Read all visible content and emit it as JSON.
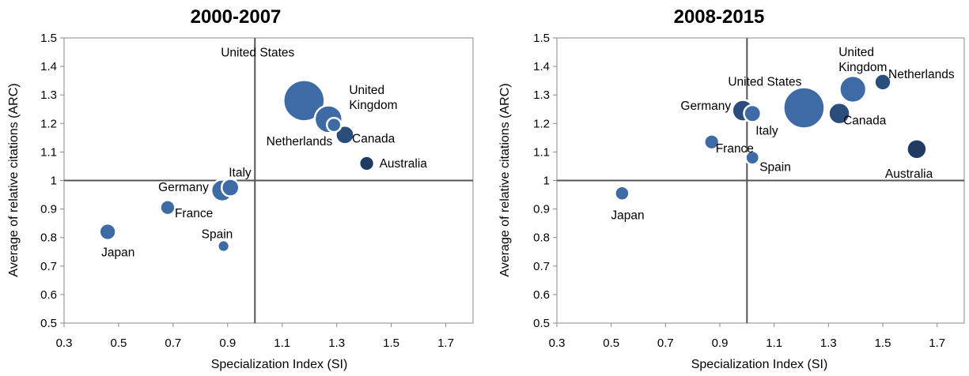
{
  "chart_data": [
    {
      "type": "scatter",
      "title": "2000-2007",
      "xlabel": "Specialization Index (SI)",
      "ylabel": "Average of relative citations (ARC)",
      "xlim": [
        0.3,
        1.8
      ],
      "ylim": [
        0.5,
        1.5
      ],
      "x_ticks": [
        "0.3",
        "0.5",
        "0.7",
        "0.9",
        "1.1",
        "1.3",
        "1.5",
        "1.7"
      ],
      "y_ticks": [
        "0.5",
        "0.6",
        "0.7",
        "0.8",
        "0.9",
        "1",
        "1.1",
        "1.2",
        "1.3",
        "1.4",
        "1.5"
      ],
      "reference_lines": {
        "x": 1.0,
        "y": 1.0
      },
      "grid": false,
      "points": [
        {
          "label": "United States",
          "x": 1.18,
          "y": 1.28,
          "size": 1.0,
          "color": "#3e6aa6"
        },
        {
          "label": "United Kingdom",
          "x": 1.27,
          "y": 1.215,
          "size": 0.45,
          "color": "#3e6aa6"
        },
        {
          "label": "Netherlands",
          "x": 1.29,
          "y": 1.195,
          "size": 0.12,
          "color": "#3e6aa6"
        },
        {
          "label": "Canada",
          "x": 1.33,
          "y": 1.16,
          "size": 0.2,
          "color": "#2b4d7c"
        },
        {
          "label": "Australia",
          "x": 1.41,
          "y": 1.06,
          "size": 0.13,
          "color": "#1f3b63"
        },
        {
          "label": "Italy",
          "x": 0.91,
          "y": 0.975,
          "size": 0.18,
          "color": "#3e6aa6"
        },
        {
          "label": "Germany",
          "x": 0.88,
          "y": 0.965,
          "size": 0.28,
          "color": "#3e6aa6"
        },
        {
          "label": "France",
          "x": 0.68,
          "y": 0.905,
          "size": 0.13,
          "color": "#3e6aa6"
        },
        {
          "label": "Japan",
          "x": 0.46,
          "y": 0.82,
          "size": 0.16,
          "color": "#3e6aa6"
        },
        {
          "label": "Spain",
          "x": 0.885,
          "y": 0.77,
          "size": 0.08,
          "color": "#3e6aa6"
        }
      ]
    },
    {
      "type": "scatter",
      "title": "2008-2015",
      "xlabel": "Specialization Index (SI)",
      "ylabel": "Average of relative citations (ARC)",
      "xlim": [
        0.3,
        1.8
      ],
      "ylim": [
        0.5,
        1.5
      ],
      "x_ticks": [
        "0.3",
        "0.5",
        "0.7",
        "0.9",
        "1.1",
        "1.3",
        "1.5",
        "1.7"
      ],
      "y_ticks": [
        "0.5",
        "0.6",
        "0.7",
        "0.8",
        "0.9",
        "1",
        "1.1",
        "1.2",
        "1.3",
        "1.4",
        "1.5"
      ],
      "reference_lines": {
        "x": 1.0,
        "y": 1.0
      },
      "grid": false,
      "points": [
        {
          "label": "United States",
          "x": 1.21,
          "y": 1.255,
          "size": 1.0,
          "color": "#3e6aa6"
        },
        {
          "label": "United Kingdom",
          "x": 1.39,
          "y": 1.32,
          "size": 0.42,
          "color": "#3e6aa6"
        },
        {
          "label": "Netherlands",
          "x": 1.5,
          "y": 1.345,
          "size": 0.16,
          "color": "#2b4d7c"
        },
        {
          "label": "Germany",
          "x": 0.985,
          "y": 1.245,
          "size": 0.27,
          "color": "#2b4d7c"
        },
        {
          "label": "Italy",
          "x": 1.02,
          "y": 1.235,
          "size": 0.17,
          "color": "#3e6aa6"
        },
        {
          "label": "Canada",
          "x": 1.34,
          "y": 1.235,
          "size": 0.27,
          "color": "#2b4d7c"
        },
        {
          "label": "France",
          "x": 0.87,
          "y": 1.135,
          "size": 0.13,
          "color": "#3e6aa6"
        },
        {
          "label": "Australia",
          "x": 1.625,
          "y": 1.11,
          "size": 0.23,
          "color": "#1f3b63"
        },
        {
          "label": "Spain",
          "x": 1.02,
          "y": 1.08,
          "size": 0.11,
          "color": "#3e6aa6"
        },
        {
          "label": "Japan",
          "x": 0.54,
          "y": 0.955,
          "size": 0.12,
          "color": "#3e6aa6"
        }
      ]
    }
  ]
}
